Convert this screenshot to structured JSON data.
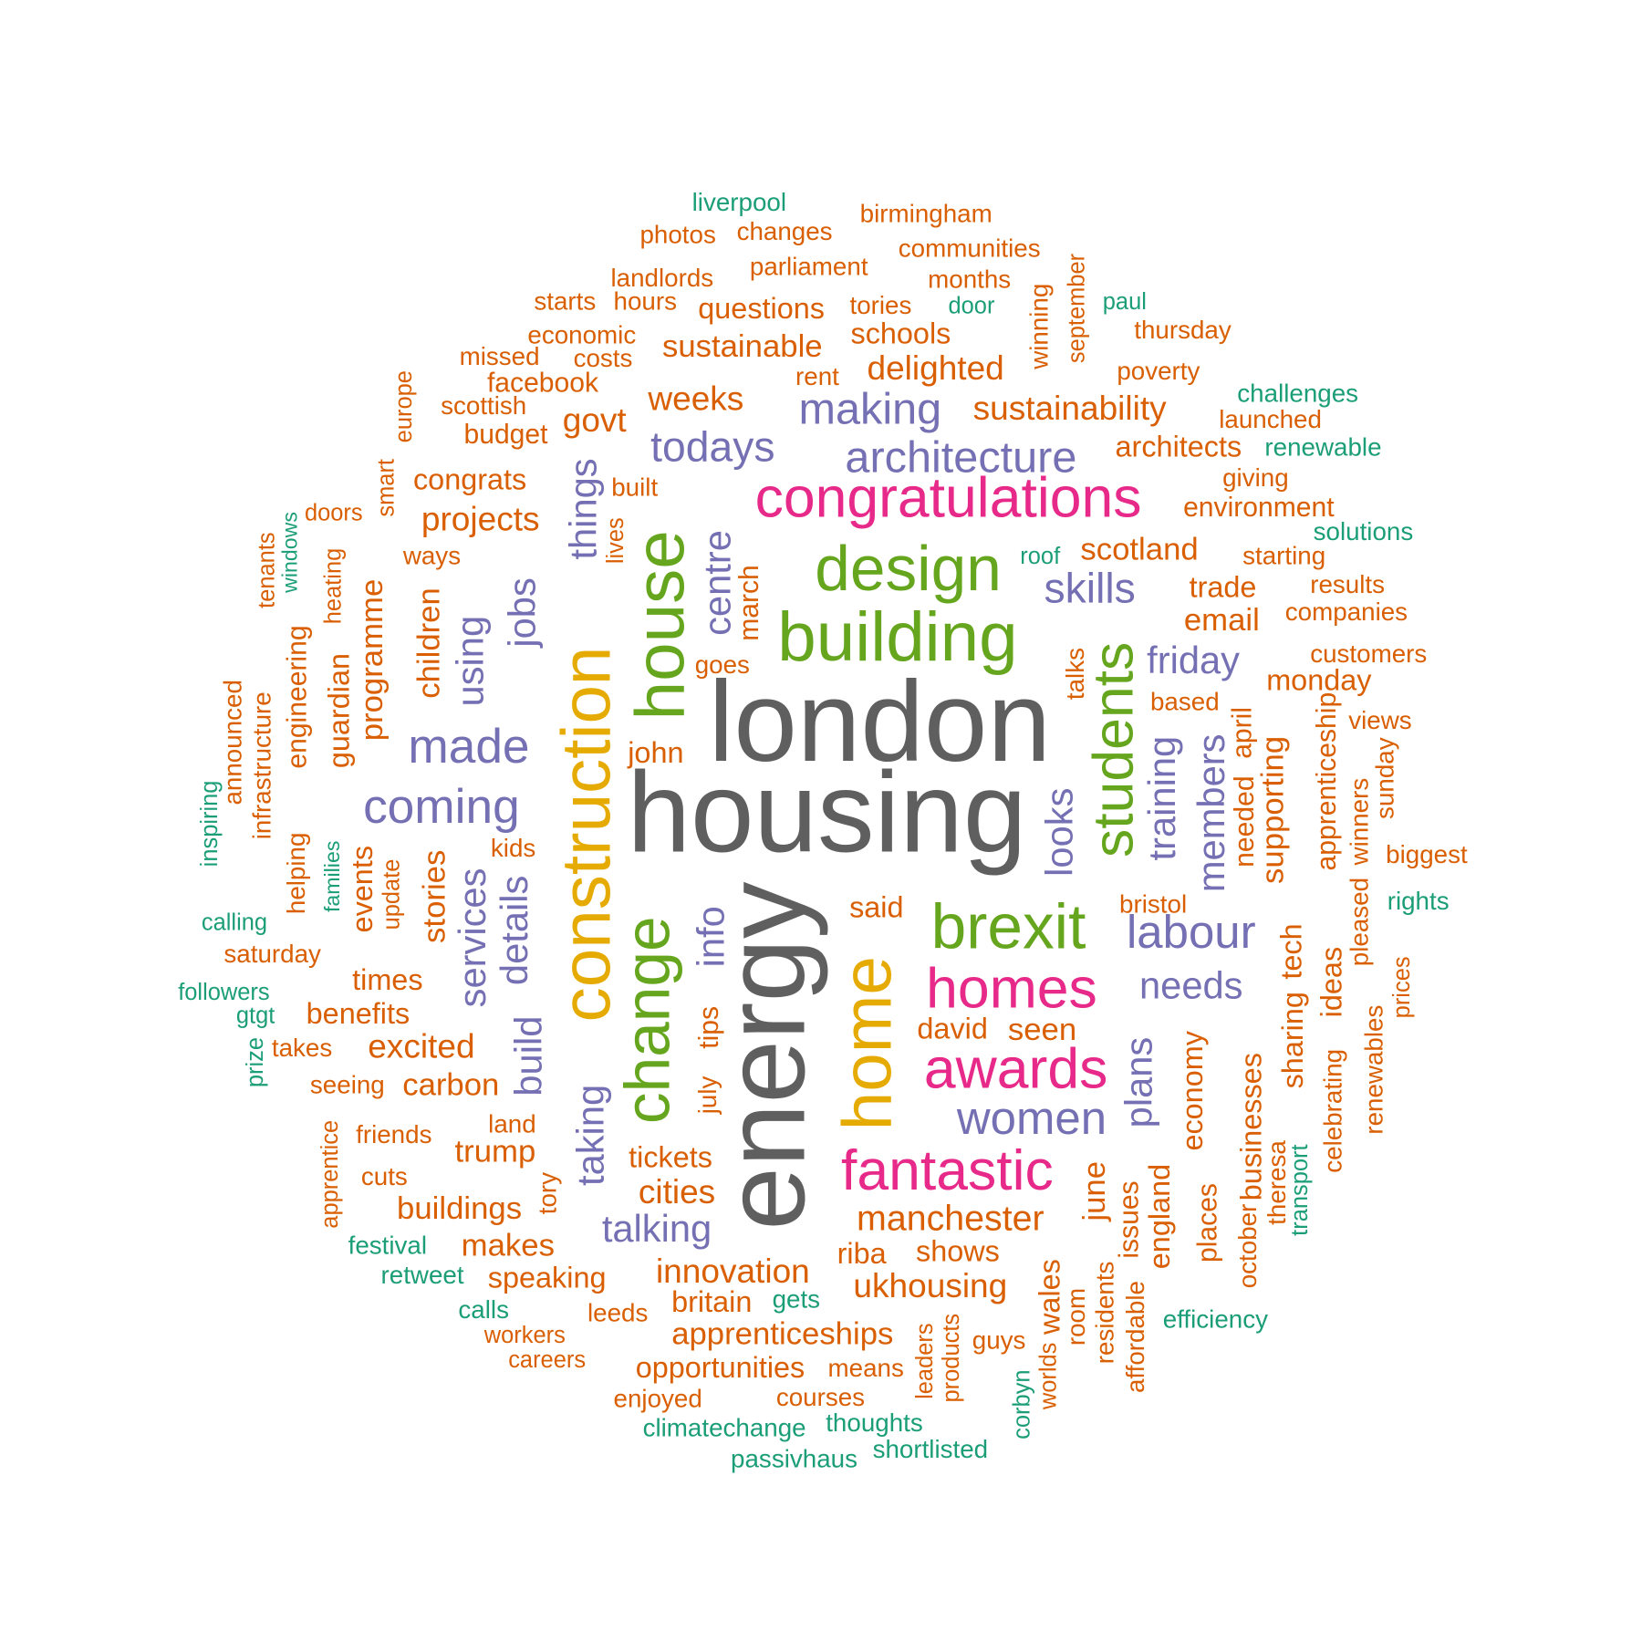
{
  "colors": {
    "gray": "#5f5f5f",
    "orange": "#d95f02",
    "green": "#1b9e77",
    "purple": "#7570b3",
    "pink": "#e7298a",
    "lime": "#66a61e",
    "gold": "#e6ab02"
  },
  "words": [
    {
      "text": "london",
      "color": "gray"
    },
    {
      "text": "housing",
      "color": "gray"
    },
    {
      "text": "energy",
      "color": "gray"
    },
    {
      "text": "construction",
      "color": "gold"
    },
    {
      "text": "home",
      "color": "gold"
    },
    {
      "text": "building",
      "color": "lime"
    },
    {
      "text": "house",
      "color": "lime"
    },
    {
      "text": "design",
      "color": "lime"
    },
    {
      "text": "brexit",
      "color": "lime"
    },
    {
      "text": "change",
      "color": "lime"
    },
    {
      "text": "students",
      "color": "lime"
    },
    {
      "text": "congratulations",
      "color": "pink"
    },
    {
      "text": "homes",
      "color": "pink"
    },
    {
      "text": "awards",
      "color": "pink"
    },
    {
      "text": "fantastic",
      "color": "pink"
    },
    {
      "text": "architecture",
      "color": "purple"
    },
    {
      "text": "made",
      "color": "purple"
    },
    {
      "text": "coming",
      "color": "purple"
    },
    {
      "text": "labour",
      "color": "purple"
    },
    {
      "text": "women",
      "color": "purple"
    },
    {
      "text": "making",
      "color": "purple"
    },
    {
      "text": "todays",
      "color": "purple"
    },
    {
      "text": "skills",
      "color": "purple"
    },
    {
      "text": "friday",
      "color": "purple"
    },
    {
      "text": "needs",
      "color": "purple"
    },
    {
      "text": "talking",
      "color": "purple"
    },
    {
      "text": "jobs",
      "color": "purple"
    },
    {
      "text": "things",
      "color": "purple"
    },
    {
      "text": "centre",
      "color": "purple"
    },
    {
      "text": "using",
      "color": "purple"
    },
    {
      "text": "details",
      "color": "purple"
    },
    {
      "text": "services",
      "color": "purple"
    },
    {
      "text": "build",
      "color": "purple"
    },
    {
      "text": "info",
      "color": "purple"
    },
    {
      "text": "taking",
      "color": "purple"
    },
    {
      "text": "looks",
      "color": "purple"
    },
    {
      "text": "training",
      "color": "purple"
    },
    {
      "text": "members",
      "color": "purple"
    },
    {
      "text": "plans",
      "color": "purple"
    },
    {
      "text": "manchester",
      "color": "orange"
    },
    {
      "text": "innovation",
      "color": "orange"
    },
    {
      "text": "ukhousing",
      "color": "orange"
    },
    {
      "text": "apprenticeships",
      "color": "orange"
    },
    {
      "text": "opportunities",
      "color": "orange"
    },
    {
      "text": "sustainability",
      "color": "orange"
    },
    {
      "text": "sustainable",
      "color": "orange"
    },
    {
      "text": "delighted",
      "color": "orange"
    },
    {
      "text": "weeks",
      "color": "orange"
    },
    {
      "text": "questions",
      "color": "orange"
    },
    {
      "text": "schools",
      "color": "orange"
    },
    {
      "text": "govt",
      "color": "orange"
    },
    {
      "text": "projects",
      "color": "orange"
    },
    {
      "text": "congrats",
      "color": "orange"
    },
    {
      "text": "scotland",
      "color": "orange"
    },
    {
      "text": "email",
      "color": "orange"
    },
    {
      "text": "trade",
      "color": "orange"
    },
    {
      "text": "monday",
      "color": "orange"
    },
    {
      "text": "architects",
      "color": "orange"
    },
    {
      "text": "environment",
      "color": "orange"
    },
    {
      "text": "excited",
      "color": "orange"
    },
    {
      "text": "benefits",
      "color": "orange"
    },
    {
      "text": "times",
      "color": "orange"
    },
    {
      "text": "carbon",
      "color": "orange"
    },
    {
      "text": "trump",
      "color": "orange"
    },
    {
      "text": "buildings",
      "color": "orange"
    },
    {
      "text": "makes",
      "color": "orange"
    },
    {
      "text": "speaking",
      "color": "orange"
    },
    {
      "text": "cities",
      "color": "orange"
    },
    {
      "text": "tickets",
      "color": "orange"
    },
    {
      "text": "britain",
      "color": "orange"
    },
    {
      "text": "shows",
      "color": "orange"
    },
    {
      "text": "riba",
      "color": "orange"
    },
    {
      "text": "seen",
      "color": "orange"
    },
    {
      "text": "david",
      "color": "orange"
    },
    {
      "text": "said",
      "color": "orange"
    },
    {
      "text": "john",
      "color": "orange"
    },
    {
      "text": "facebook",
      "color": "orange"
    },
    {
      "text": "budget",
      "color": "orange"
    },
    {
      "text": "economic",
      "color": "orange"
    },
    {
      "text": "landlords",
      "color": "orange"
    },
    {
      "text": "parliament",
      "color": "orange"
    },
    {
      "text": "communities",
      "color": "orange"
    },
    {
      "text": "months",
      "color": "orange"
    },
    {
      "text": "tories",
      "color": "orange"
    },
    {
      "text": "birmingham",
      "color": "orange"
    },
    {
      "text": "changes",
      "color": "orange"
    },
    {
      "text": "photos",
      "color": "orange"
    },
    {
      "text": "starts",
      "color": "orange"
    },
    {
      "text": "hours",
      "color": "orange"
    },
    {
      "text": "missed",
      "color": "orange"
    },
    {
      "text": "costs",
      "color": "orange"
    },
    {
      "text": "rent",
      "color": "orange"
    },
    {
      "text": "scottish",
      "color": "orange"
    },
    {
      "text": "thursday",
      "color": "orange"
    },
    {
      "text": "poverty",
      "color": "orange"
    },
    {
      "text": "launched",
      "color": "orange"
    },
    {
      "text": "giving",
      "color": "orange"
    },
    {
      "text": "starting",
      "color": "orange"
    },
    {
      "text": "results",
      "color": "orange"
    },
    {
      "text": "companies",
      "color": "orange"
    },
    {
      "text": "customers",
      "color": "orange"
    },
    {
      "text": "based",
      "color": "orange"
    },
    {
      "text": "views",
      "color": "orange"
    },
    {
      "text": "biggest",
      "color": "orange"
    },
    {
      "text": "bristol",
      "color": "orange"
    },
    {
      "text": "built",
      "color": "orange"
    },
    {
      "text": "ways",
      "color": "orange"
    },
    {
      "text": "doors",
      "color": "orange"
    },
    {
      "text": "goes",
      "color": "orange"
    },
    {
      "text": "saturday",
      "color": "orange"
    },
    {
      "text": "takes",
      "color": "orange"
    },
    {
      "text": "seeing",
      "color": "orange"
    },
    {
      "text": "friends",
      "color": "orange"
    },
    {
      "text": "land",
      "color": "orange"
    },
    {
      "text": "cuts",
      "color": "orange"
    },
    {
      "text": "kids",
      "color": "orange"
    },
    {
      "text": "workers",
      "color": "orange"
    },
    {
      "text": "careers",
      "color": "orange"
    },
    {
      "text": "leeds",
      "color": "orange"
    },
    {
      "text": "enjoyed",
      "color": "orange"
    },
    {
      "text": "courses",
      "color": "orange"
    },
    {
      "text": "means",
      "color": "orange"
    },
    {
      "text": "guys",
      "color": "orange"
    },
    {
      "text": "europe",
      "color": "orange"
    },
    {
      "text": "smart",
      "color": "orange"
    },
    {
      "text": "lives",
      "color": "orange"
    },
    {
      "text": "heating",
      "color": "orange"
    },
    {
      "text": "tenants",
      "color": "orange"
    },
    {
      "text": "programme",
      "color": "orange"
    },
    {
      "text": "children",
      "color": "orange"
    },
    {
      "text": "guardian",
      "color": "orange"
    },
    {
      "text": "engineering",
      "color": "orange"
    },
    {
      "text": "infrastructure",
      "color": "orange"
    },
    {
      "text": "announced",
      "color": "orange"
    },
    {
      "text": "helping",
      "color": "orange"
    },
    {
      "text": "events",
      "color": "orange"
    },
    {
      "text": "update",
      "color": "orange"
    },
    {
      "text": "stories",
      "color": "orange"
    },
    {
      "text": "march",
      "color": "orange"
    },
    {
      "text": "tips",
      "color": "orange"
    },
    {
      "text": "july",
      "color": "orange"
    },
    {
      "text": "apprentice",
      "color": "orange"
    },
    {
      "text": "tory",
      "color": "orange"
    },
    {
      "text": "talks",
      "color": "orange"
    },
    {
      "text": "winning",
      "color": "orange"
    },
    {
      "text": "september",
      "color": "orange"
    },
    {
      "text": "april",
      "color": "orange"
    },
    {
      "text": "needed",
      "color": "orange"
    },
    {
      "text": "supporting",
      "color": "orange"
    },
    {
      "text": "apprenticeship",
      "color": "orange"
    },
    {
      "text": "winners",
      "color": "orange"
    },
    {
      "text": "sunday",
      "color": "orange"
    },
    {
      "text": "pleased",
      "color": "orange"
    },
    {
      "text": "prices",
      "color": "orange"
    },
    {
      "text": "renewables",
      "color": "orange"
    },
    {
      "text": "ideas",
      "color": "orange"
    },
    {
      "text": "celebrating",
      "color": "orange"
    },
    {
      "text": "tech",
      "color": "orange"
    },
    {
      "text": "sharing",
      "color": "orange"
    },
    {
      "text": "theresa",
      "color": "orange"
    },
    {
      "text": "businesses",
      "color": "orange"
    },
    {
      "text": "october",
      "color": "orange"
    },
    {
      "text": "places",
      "color": "orange"
    },
    {
      "text": "economy",
      "color": "orange"
    },
    {
      "text": "england",
      "color": "orange"
    },
    {
      "text": "issues",
      "color": "orange"
    },
    {
      "text": "affordable",
      "color": "orange"
    },
    {
      "text": "residents",
      "color": "orange"
    },
    {
      "text": "june",
      "color": "orange"
    },
    {
      "text": "wales",
      "color": "orange"
    },
    {
      "text": "room",
      "color": "orange"
    },
    {
      "text": "worlds",
      "color": "orange"
    },
    {
      "text": "products",
      "color": "orange"
    },
    {
      "text": "leaders",
      "color": "orange"
    },
    {
      "text": "liverpool",
      "color": "green"
    },
    {
      "text": "door",
      "color": "green"
    },
    {
      "text": "paul",
      "color": "green"
    },
    {
      "text": "challenges",
      "color": "green"
    },
    {
      "text": "renewable",
      "color": "green"
    },
    {
      "text": "solutions",
      "color": "green"
    },
    {
      "text": "roof",
      "color": "green"
    },
    {
      "text": "rights",
      "color": "green"
    },
    {
      "text": "calling",
      "color": "green"
    },
    {
      "text": "followers",
      "color": "green"
    },
    {
      "text": "gtgt",
      "color": "green"
    },
    {
      "text": "festival",
      "color": "green"
    },
    {
      "text": "retweet",
      "color": "green"
    },
    {
      "text": "calls",
      "color": "green"
    },
    {
      "text": "gets",
      "color": "green"
    },
    {
      "text": "climatechange",
      "color": "green"
    },
    {
      "text": "thoughts",
      "color": "green"
    },
    {
      "text": "passivhaus",
      "color": "green"
    },
    {
      "text": "shortlisted",
      "color": "green"
    },
    {
      "text": "efficiency",
      "color": "green"
    },
    {
      "text": "windows",
      "color": "green"
    },
    {
      "text": "inspiring",
      "color": "green"
    },
    {
      "text": "families",
      "color": "green"
    },
    {
      "text": "prize",
      "color": "green"
    },
    {
      "text": "corbyn",
      "color": "green"
    },
    {
      "text": "transport",
      "color": "green"
    }
  ]
}
